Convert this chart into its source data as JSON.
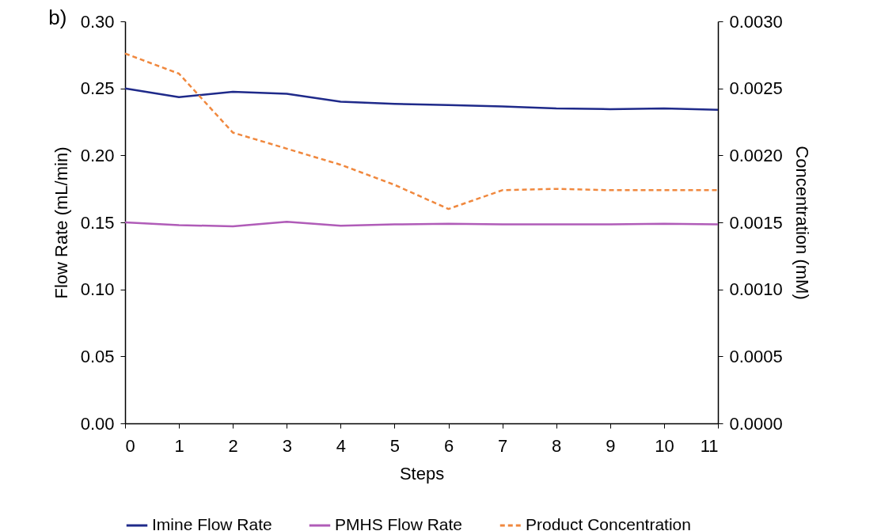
{
  "chart_data": {
    "type": "line",
    "annotations": [
      "b)"
    ],
    "xlabel": "Steps",
    "ylabel": "Flow Rate (mL/min)",
    "y2label": "Concentration (mM)",
    "x": [
      0,
      1,
      2,
      3,
      4,
      5,
      6,
      7,
      8,
      9,
      10,
      11
    ],
    "xlim": [
      0,
      11
    ],
    "xticks": [
      0,
      1,
      2,
      3,
      4,
      5,
      6,
      7,
      8,
      9,
      10,
      11
    ],
    "ylim": [
      0,
      0.3
    ],
    "yticks": [
      {
        "value": 0,
        "label": "0.00"
      },
      {
        "value": 0.05,
        "label": "0.05"
      },
      {
        "value": 0.1,
        "label": "0.10"
      },
      {
        "value": 0.15,
        "label": "0.15"
      },
      {
        "value": 0.2,
        "label": "0.20"
      },
      {
        "value": 0.25,
        "label": "0.25"
      },
      {
        "value": 0.3,
        "label": "0.30"
      }
    ],
    "y2lim": [
      0,
      0.003
    ],
    "y2ticks": [
      {
        "value": 0,
        "label": "0.0000"
      },
      {
        "value": 0.0005,
        "label": "0.0005"
      },
      {
        "value": 0.001,
        "label": "0.0010"
      },
      {
        "value": 0.0015,
        "label": "0.0015"
      },
      {
        "value": 0.002,
        "label": "0.0020"
      },
      {
        "value": 0.0025,
        "label": "0.0025"
      },
      {
        "value": 0.003,
        "label": "0.0030"
      }
    ],
    "grid": false,
    "legend": "bottom",
    "marker": "none",
    "series": [
      {
        "name": "Imine Flow Rate",
        "color": "#1f2a8a",
        "line_style": "solid",
        "values": [
          0.25,
          0.2435,
          0.2475,
          0.246,
          0.24,
          0.2385,
          0.2375,
          0.2365,
          0.235,
          0.2345,
          0.235,
          0.234
        ]
      },
      {
        "name": "PMHS Flow Rate",
        "color": "#b05cb8",
        "line_style": "solid",
        "values": [
          0.15,
          0.148,
          0.147,
          0.1505,
          0.1475,
          0.1485,
          0.149,
          0.1485,
          0.1485,
          0.1485,
          0.149,
          0.1485
        ]
      },
      {
        "name": "Product Concentration",
        "color": "#f0883e",
        "line_style": "dashed",
        "axis": "y2",
        "values": [
          0.00276,
          0.00261,
          0.00217,
          0.00205,
          0.00193,
          0.00178,
          0.0016,
          0.00174,
          0.00175,
          0.00174,
          0.00174,
          0.00174
        ]
      }
    ]
  }
}
